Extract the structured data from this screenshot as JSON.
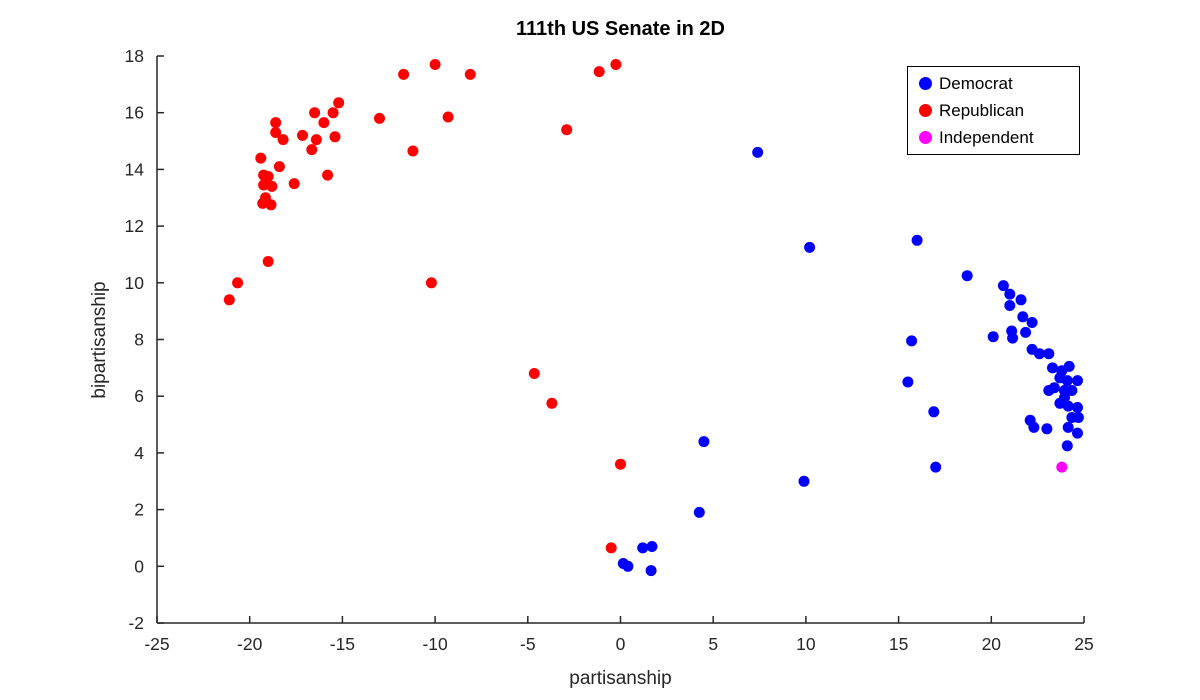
{
  "figure": {
    "title": "111th US Senate in 2D",
    "xlabel": "partisanship",
    "ylabel": "bipartisanship"
  },
  "colors": {
    "democrat": "#0000FF",
    "republican": "#FF0000",
    "independent": "#FF00FF",
    "axis": "#262626",
    "background": "#FFFFFF"
  },
  "chart_data": {
    "type": "scatter",
    "title": "111th US Senate in 2D",
    "xlabel": "partisanship",
    "ylabel": "bipartisanship",
    "xlim": [
      -25,
      25
    ],
    "ylim": [
      -2,
      18
    ],
    "xticks": [
      -25,
      -20,
      -15,
      -10,
      -5,
      0,
      5,
      10,
      15,
      20,
      25
    ],
    "yticks": [
      -2,
      0,
      2,
      4,
      6,
      8,
      10,
      12,
      14,
      16,
      18
    ],
    "grid": false,
    "legend_position": "top-right",
    "marker_size_px": 11,
    "series": [
      {
        "name": "Democrat",
        "color": "#0000FF",
        "points": [
          [
            7.4,
            14.6
          ],
          [
            10.2,
            11.25
          ],
          [
            16.0,
            11.5
          ],
          [
            18.7,
            10.25
          ],
          [
            20.1,
            8.1
          ],
          [
            15.7,
            7.95
          ],
          [
            15.5,
            6.5
          ],
          [
            16.9,
            5.45
          ],
          [
            17.0,
            3.5
          ],
          [
            20.65,
            9.9
          ],
          [
            21.0,
            9.6
          ],
          [
            21.6,
            9.4
          ],
          [
            21.0,
            9.2
          ],
          [
            21.7,
            8.8
          ],
          [
            22.2,
            8.6
          ],
          [
            21.1,
            8.3
          ],
          [
            21.15,
            8.05
          ],
          [
            21.85,
            8.25
          ],
          [
            22.2,
            7.65
          ],
          [
            22.6,
            7.5
          ],
          [
            23.1,
            7.5
          ],
          [
            23.3,
            7.0
          ],
          [
            23.8,
            6.9
          ],
          [
            24.2,
            7.05
          ],
          [
            23.7,
            6.65
          ],
          [
            24.1,
            6.55
          ],
          [
            24.65,
            6.55
          ],
          [
            23.4,
            6.3
          ],
          [
            23.95,
            6.2
          ],
          [
            23.1,
            6.2
          ],
          [
            24.35,
            6.2
          ],
          [
            23.95,
            5.95
          ],
          [
            23.7,
            5.75
          ],
          [
            24.15,
            5.65
          ],
          [
            24.65,
            5.6
          ],
          [
            24.7,
            5.25
          ],
          [
            24.35,
            5.25
          ],
          [
            24.15,
            4.9
          ],
          [
            24.65,
            4.7
          ],
          [
            22.1,
            5.15
          ],
          [
            22.3,
            4.9
          ],
          [
            23.0,
            4.85
          ],
          [
            24.1,
            4.25
          ],
          [
            4.5,
            4.4
          ],
          [
            4.25,
            1.9
          ],
          [
            1.2,
            0.65
          ],
          [
            1.7,
            0.7
          ],
          [
            0.15,
            0.1
          ],
          [
            0.4,
            0.0
          ],
          [
            1.65,
            -0.15
          ],
          [
            9.9,
            3.0
          ]
        ]
      },
      {
        "name": "Republican",
        "color": "#FF0000",
        "points": [
          [
            -10.0,
            17.7
          ],
          [
            -11.7,
            17.35
          ],
          [
            -8.1,
            17.35
          ],
          [
            -13.0,
            15.8
          ],
          [
            -9.3,
            15.85
          ],
          [
            -11.2,
            14.65
          ],
          [
            -15.2,
            16.35
          ],
          [
            -15.5,
            16.0
          ],
          [
            -16.5,
            16.0
          ],
          [
            -16.0,
            15.65
          ],
          [
            -18.6,
            15.65
          ],
          [
            -18.6,
            15.3
          ],
          [
            -17.15,
            15.2
          ],
          [
            -18.2,
            15.05
          ],
          [
            -16.4,
            15.05
          ],
          [
            -15.4,
            15.15
          ],
          [
            -16.65,
            14.7
          ],
          [
            -19.4,
            14.4
          ],
          [
            -18.4,
            14.1
          ],
          [
            -19.25,
            13.8
          ],
          [
            -19.0,
            13.75
          ],
          [
            -19.25,
            13.45
          ],
          [
            -18.8,
            13.4
          ],
          [
            -17.6,
            13.5
          ],
          [
            -15.8,
            13.8
          ],
          [
            -19.15,
            13.0
          ],
          [
            -19.3,
            12.8
          ],
          [
            -18.85,
            12.75
          ],
          [
            -19.0,
            10.75
          ],
          [
            -20.65,
            10.0
          ],
          [
            -21.1,
            9.4
          ],
          [
            -10.2,
            10.0
          ],
          [
            -2.9,
            15.4
          ],
          [
            -4.65,
            6.8
          ],
          [
            -3.7,
            5.75
          ],
          [
            -1.15,
            17.45
          ],
          [
            -0.25,
            17.7
          ],
          [
            0.0,
            3.6
          ],
          [
            -0.5,
            0.65
          ]
        ]
      },
      {
        "name": "Independent",
        "color": "#FF00FF",
        "points": [
          [
            23.8,
            3.5
          ]
        ]
      }
    ]
  }
}
